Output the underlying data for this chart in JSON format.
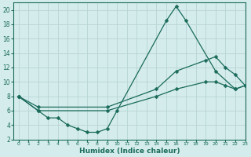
{
  "xlabel": "Humidex (Indice chaleur)",
  "bg_color": "#d4ecec",
  "grid_color": "#b8d4d4",
  "line_color": "#1a6b5a",
  "xlim": [
    -0.5,
    23
  ],
  "ylim": [
    2,
    21
  ],
  "xticks": [
    0,
    1,
    2,
    3,
    4,
    5,
    6,
    7,
    8,
    9,
    10,
    11,
    12,
    13,
    14,
    15,
    16,
    17,
    18,
    19,
    20,
    21,
    22,
    23
  ],
  "yticks": [
    2,
    4,
    6,
    8,
    10,
    12,
    14,
    16,
    18,
    20
  ],
  "line1_x": [
    0,
    2,
    3,
    4,
    5,
    6,
    7,
    8,
    9,
    10,
    15,
    16,
    17,
    20,
    22,
    23
  ],
  "line1_y": [
    8,
    6,
    5,
    5,
    4,
    3.5,
    3,
    3,
    3.5,
    6,
    18.5,
    20.5,
    18.5,
    11.5,
    9,
    9.5
  ],
  "line2_x": [
    0,
    2,
    9,
    14,
    16,
    19,
    20,
    21,
    22,
    23
  ],
  "line2_y": [
    8,
    6.5,
    6.5,
    9,
    11.5,
    13,
    13.5,
    12,
    11,
    9.5
  ],
  "line3_x": [
    0,
    2,
    9,
    14,
    16,
    19,
    20,
    21,
    22,
    23
  ],
  "line3_y": [
    8,
    6,
    6,
    8,
    9,
    10,
    10,
    9.5,
    9,
    9.5
  ]
}
